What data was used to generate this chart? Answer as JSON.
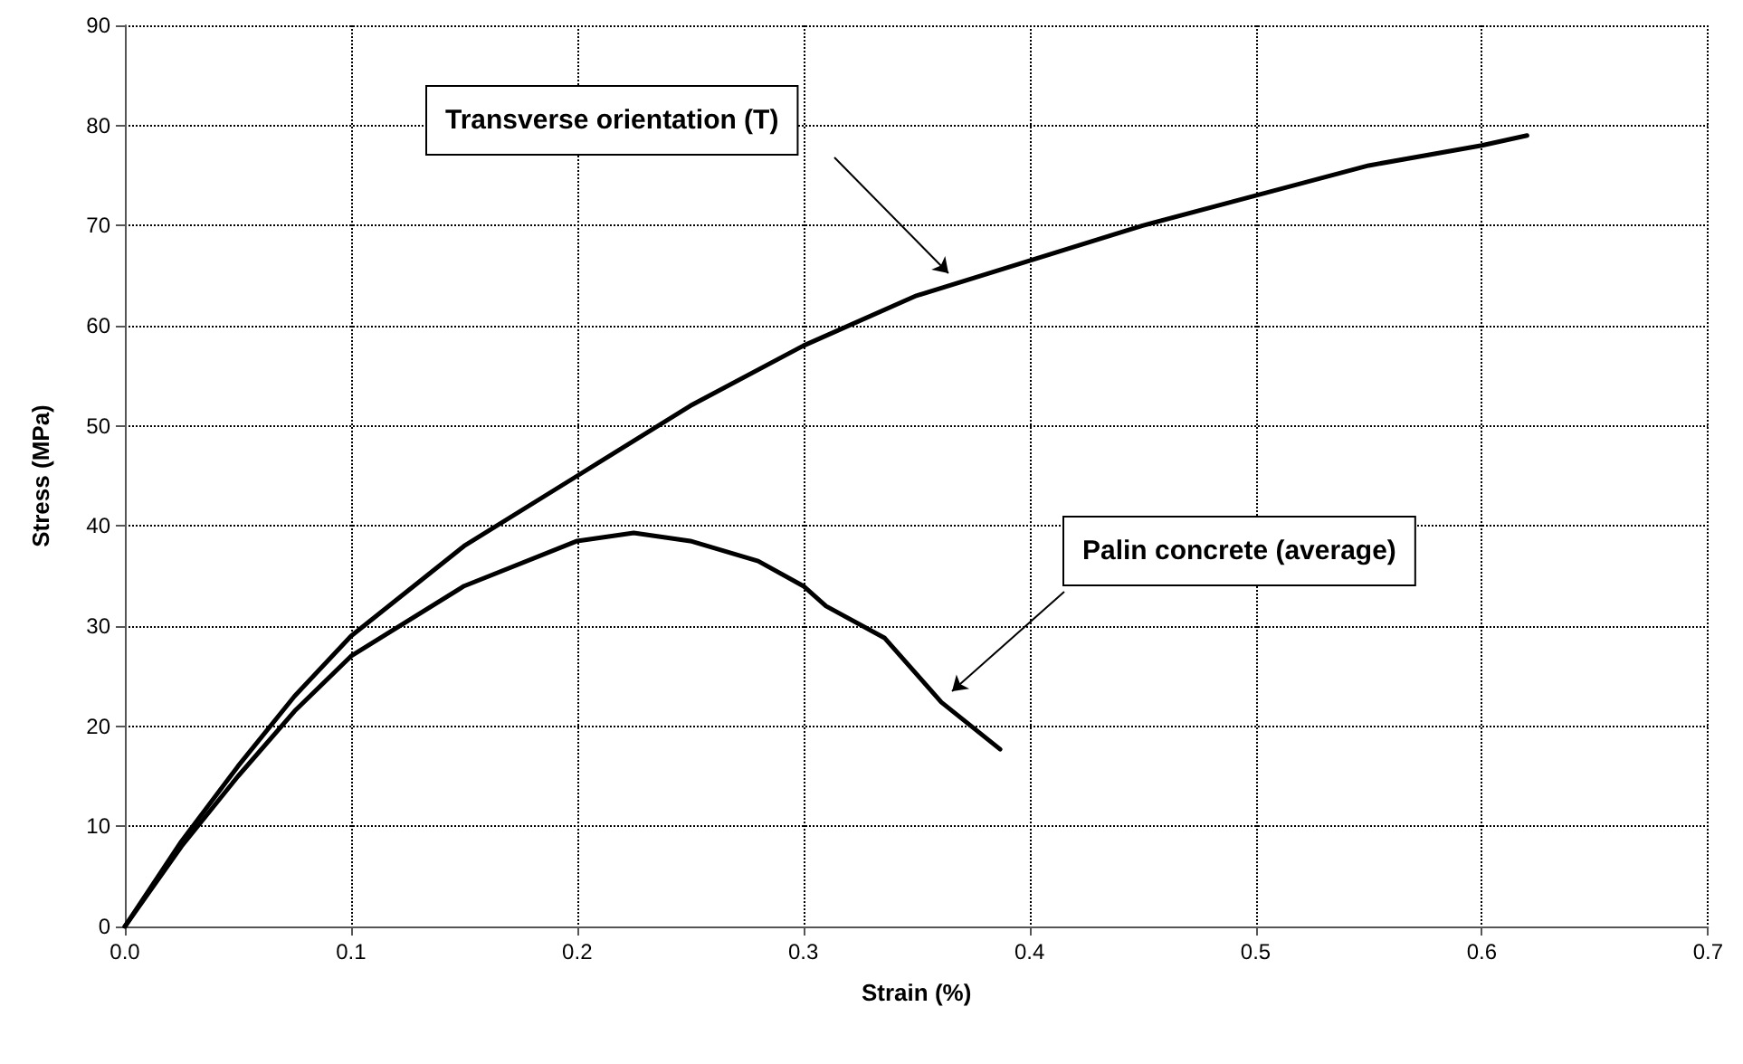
{
  "chart_data": {
    "type": "line",
    "xlabel": "Strain (%)",
    "ylabel": "Stress (MPa)",
    "xlim": [
      0,
      0.7
    ],
    "xticks": [
      {
        "value": 0,
        "label": "0.0"
      },
      0.1,
      0.2,
      0.3,
      0.4,
      0.5,
      0.6,
      0.7
    ],
    "ylim": [
      0,
      90
    ],
    "yticks": [
      0,
      10,
      20,
      30,
      40,
      50,
      60,
      70,
      80,
      90
    ],
    "grid": true,
    "marker": "none",
    "line_style": "solid",
    "series": [
      {
        "color": "#000000",
        "x": [
          0,
          0.025,
          0.05,
          0.075,
          0.1,
          0.15,
          0.2,
          0.25,
          0.3,
          0.35,
          0.4,
          0.45,
          0.5,
          0.55,
          0.6,
          0.62
        ],
        "values": [
          0,
          8.5,
          16,
          23,
          29,
          38,
          45,
          52,
          58,
          63,
          66.5,
          70,
          73,
          76,
          78,
          79
        ]
      },
      {
        "color": "#000000",
        "x": [
          0,
          0.025,
          0.05,
          0.075,
          0.1,
          0.15,
          0.2,
          0.225,
          0.25,
          0.28,
          0.3,
          0.31,
          0.336,
          0.361,
          0.387
        ],
        "values": [
          0,
          8,
          15,
          21.5,
          27,
          34,
          38.5,
          39.3,
          38.5,
          36.5,
          34,
          32,
          28.8,
          22.4,
          17.7
        ]
      }
    ],
    "annotations": [
      "Transverse orientation (T)",
      "Palin concrete (average)"
    ]
  }
}
